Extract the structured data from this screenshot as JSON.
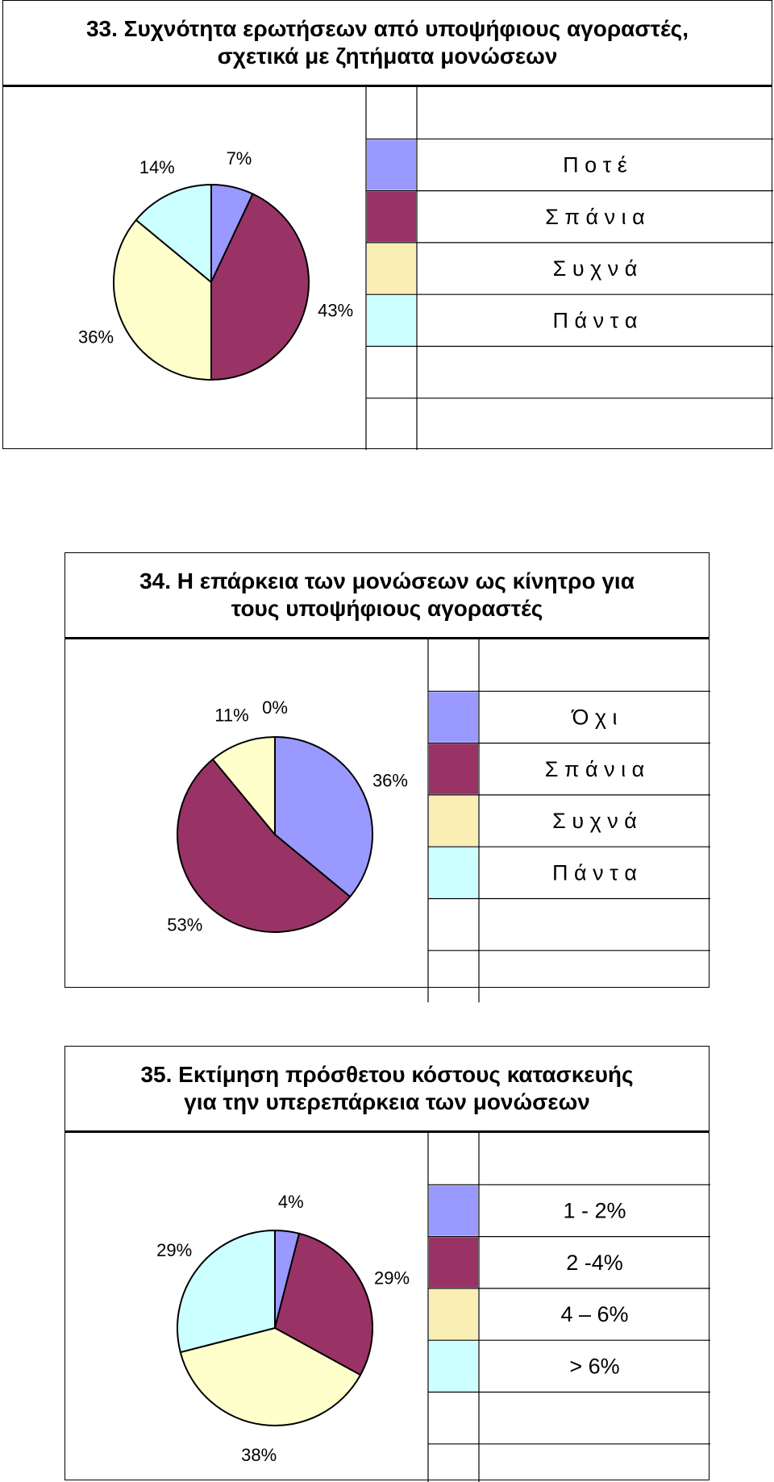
{
  "colors": {
    "blue": "#9999ff",
    "maroon": "#993366",
    "cream": "#ffffcc",
    "legend_cream": "#f9efb5",
    "cyan": "#ccffff",
    "outline": "#000000"
  },
  "chart_data": [
    {
      "type": "pie",
      "title": "33. Συχνότητα ερωτήσεων από υποψήφιους αγοραστές, σχετικά με ζητήματα μονώσεων",
      "title_lines": [
        "33. Συχνότητα ερωτήσεων από υποψήφιους αγοραστές,",
        "σχετικά με ζητήματα μονώσεων"
      ],
      "categories": [
        "Π ο τ έ",
        "Σ π ά ν ι α",
        "Σ υ χ ν ά",
        "Π ά ν τ α"
      ],
      "values": [
        7,
        43,
        36,
        14
      ],
      "labels": [
        "7%",
        "43%",
        "36%",
        "14%"
      ],
      "colors": [
        "#9999ff",
        "#993366",
        "#ffffcc",
        "#ccffff"
      ],
      "legend_placement": "right"
    },
    {
      "type": "pie",
      "title": "34. Η επάρκεια των μονώσεων ως κίνητρο για τους υποψήφιους αγοραστές",
      "title_lines": [
        "34. Η επάρκεια των μονώσεων ως κίνητρο  για",
        "τους υποψήφιους αγοραστές"
      ],
      "categories": [
        "Ό χ ι",
        "Σ π ά ν ι α",
        "Σ υ χ ν ά",
        "Π ά ν τ α"
      ],
      "values": [
        36,
        53,
        11,
        0
      ],
      "labels": [
        "36%",
        "53%",
        "11%",
        "0%"
      ],
      "colors": [
        "#9999ff",
        "#993366",
        "#ffffcc",
        "#ccffff"
      ],
      "legend_placement": "right"
    },
    {
      "type": "pie",
      "title": "35. Εκτίμηση πρόσθετου κόστους κατασκευής για την υπερεπάρκεια των μονώσεων",
      "title_lines": [
        "35. Εκτίμηση πρόσθετου κόστους κατασκευής",
        "για την υπερεπάρκεια των μονώσεων"
      ],
      "categories": [
        "1 - 2%",
        "2 -4%",
        "4 – 6%",
        "> 6%"
      ],
      "values": [
        4,
        29,
        38,
        29
      ],
      "labels": [
        "4%",
        "29%",
        "38%",
        "29%"
      ],
      "colors": [
        "#9999ff",
        "#993366",
        "#ffffcc",
        "#ccffff"
      ],
      "legend_placement": "right"
    }
  ]
}
